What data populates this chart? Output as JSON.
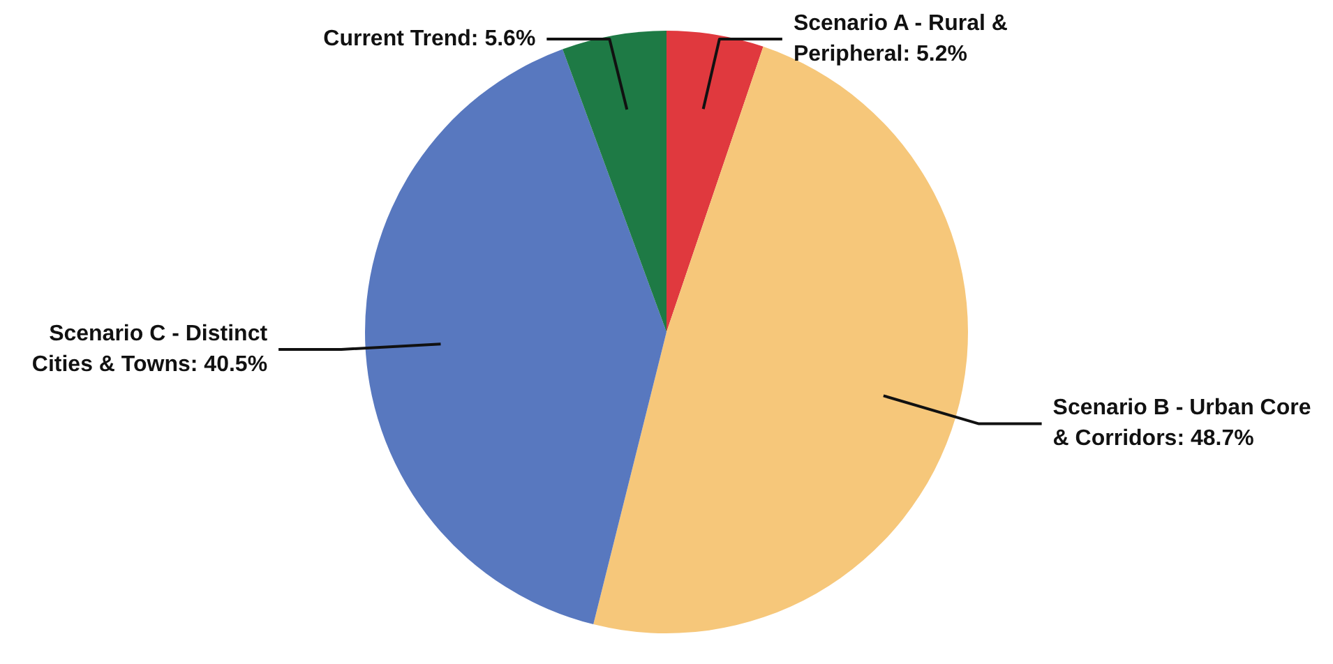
{
  "chart_data": {
    "type": "pie",
    "categories": [
      "Scenario A - Rural & Peripheral",
      "Scenario B - Urban Core & Corridors",
      "Scenario C - Distinct Cities & Towns",
      "Current Trend"
    ],
    "values": [
      5.2,
      48.7,
      40.5,
      5.6
    ],
    "colors": [
      "#e0393e",
      "#f6c77a",
      "#5878bf",
      "#1e7a45"
    ],
    "value_labels": [
      "5.2%",
      "48.7%",
      "40.5%",
      "5.6%"
    ]
  }
}
